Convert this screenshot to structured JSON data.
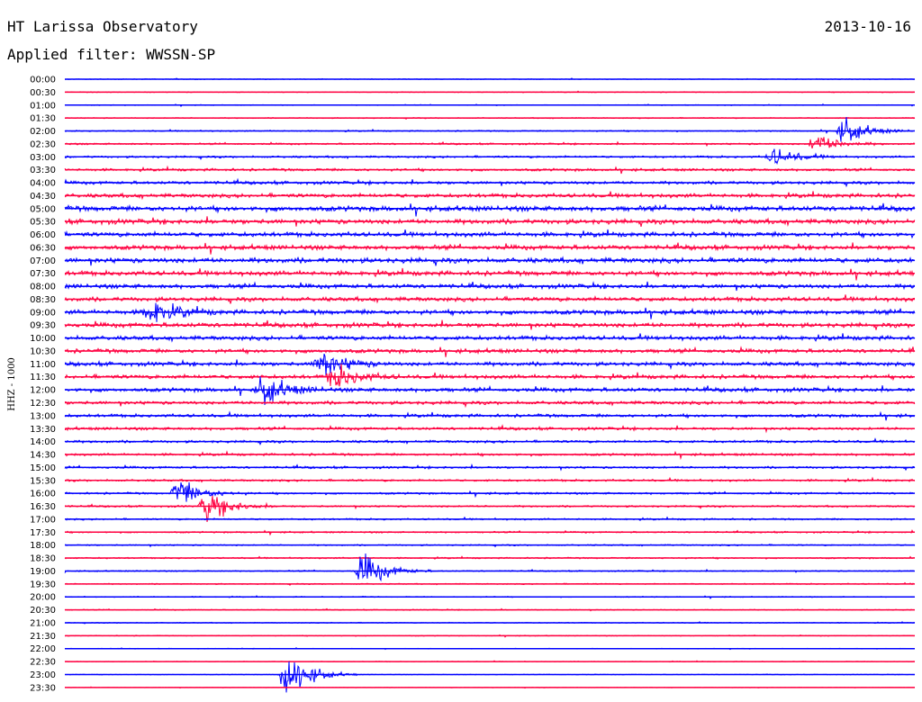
{
  "header": {
    "title": "HT Larissa Observatory",
    "date": "2013-10-16",
    "filter": "Applied filter: WWSSN-SP"
  },
  "chart_data": {
    "type": "helicorder",
    "ylabel": "HHZ - 1000",
    "colors": {
      "odd_rows": "#0000ff",
      "even_rows": "#ff0040"
    },
    "row_times": [
      "00:00",
      "00:30",
      "01:00",
      "01:30",
      "02:00",
      "02:30",
      "03:00",
      "03:30",
      "04:00",
      "04:30",
      "05:00",
      "05:30",
      "06:00",
      "06:30",
      "07:00",
      "07:30",
      "08:00",
      "08:30",
      "09:00",
      "09:30",
      "10:00",
      "10:30",
      "11:00",
      "11:30",
      "12:00",
      "12:30",
      "13:00",
      "13:30",
      "14:00",
      "14:30",
      "15:00",
      "15:30",
      "16:00",
      "16:30",
      "17:00",
      "17:30",
      "18:00",
      "18:30",
      "19:00",
      "19:30",
      "20:00",
      "20:30",
      "21:00",
      "21:30",
      "22:00",
      "22:30",
      "23:00",
      "23:30"
    ],
    "noise_level": [
      0.25,
      0.3,
      0.3,
      0.35,
      0.45,
      0.6,
      0.75,
      0.9,
      1.1,
      1.4,
      1.8,
      1.7,
      1.6,
      1.6,
      1.8,
      1.6,
      1.5,
      1.5,
      1.6,
      1.6,
      1.5,
      1.4,
      1.4,
      1.4,
      1.4,
      1.2,
      1.1,
      1.0,
      0.9,
      0.85,
      0.8,
      0.75,
      0.7,
      0.65,
      0.6,
      0.55,
      0.5,
      0.5,
      0.45,
      0.4,
      0.35,
      0.35,
      0.3,
      0.3,
      0.25,
      0.25,
      0.2,
      0.2
    ],
    "events": [
      {
        "row": 4,
        "minute": 27.5,
        "amplitude": 7
      },
      {
        "row": 5,
        "minute": 26.5,
        "amplitude": 6
      },
      {
        "row": 6,
        "minute": 25.0,
        "amplitude": 5
      },
      {
        "row": 18,
        "minute": 3.0,
        "amplitude": 8
      },
      {
        "row": 22,
        "minute": 9.0,
        "amplitude": 9
      },
      {
        "row": 23,
        "minute": 9.5,
        "amplitude": 7
      },
      {
        "row": 24,
        "minute": 7.0,
        "amplitude": 8
      },
      {
        "row": 32,
        "minute": 4.0,
        "amplitude": 8
      },
      {
        "row": 33,
        "minute": 5.0,
        "amplitude": 9
      },
      {
        "row": 38,
        "minute": 10.5,
        "amplitude": 10
      },
      {
        "row": 46,
        "minute": 7.8,
        "amplitude": 14
      }
    ]
  }
}
